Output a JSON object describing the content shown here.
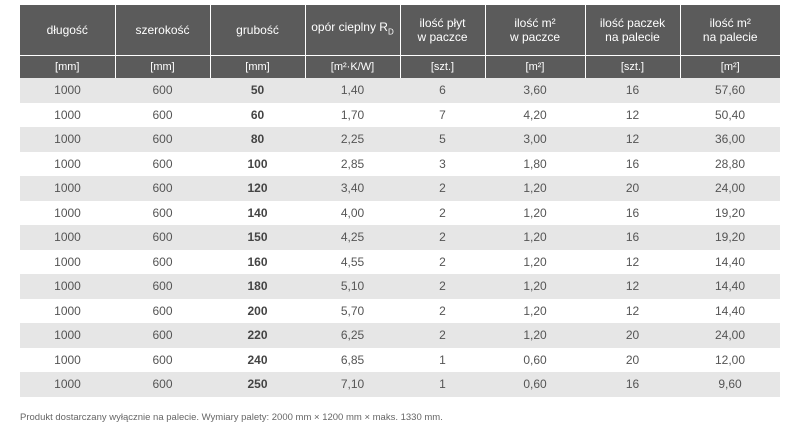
{
  "table": {
    "header": [
      {
        "lines": [
          "długość"
        ]
      },
      {
        "lines": [
          "szerokość"
        ]
      },
      {
        "lines": [
          "grubość"
        ]
      },
      {
        "lines": [
          "opór cieplny R"
        ],
        "sub": "D"
      },
      {
        "lines": [
          "ilość płyt",
          "w paczce"
        ]
      },
      {
        "lines": [
          "ilość m²",
          "w paczce"
        ]
      },
      {
        "lines": [
          "ilość paczek",
          "na palecie"
        ]
      },
      {
        "lines": [
          "ilość m²",
          "na palecie"
        ]
      }
    ],
    "units": [
      "[mm]",
      "[mm]",
      "[mm]",
      "[m²·K/W]",
      "[szt.]",
      "[m²]",
      "[szt.]",
      "[m²]"
    ],
    "rows": [
      [
        "1000",
        "600",
        "50",
        "1,40",
        "6",
        "3,60",
        "16",
        "57,60"
      ],
      [
        "1000",
        "600",
        "60",
        "1,70",
        "7",
        "4,20",
        "12",
        "50,40"
      ],
      [
        "1000",
        "600",
        "80",
        "2,25",
        "5",
        "3,00",
        "12",
        "36,00"
      ],
      [
        "1000",
        "600",
        "100",
        "2,85",
        "3",
        "1,80",
        "16",
        "28,80"
      ],
      [
        "1000",
        "600",
        "120",
        "3,40",
        "2",
        "1,20",
        "20",
        "24,00"
      ],
      [
        "1000",
        "600",
        "140",
        "4,00",
        "2",
        "1,20",
        "16",
        "19,20"
      ],
      [
        "1000",
        "600",
        "150",
        "4,25",
        "2",
        "1,20",
        "16",
        "19,20"
      ],
      [
        "1000",
        "600",
        "160",
        "4,55",
        "2",
        "1,20",
        "12",
        "14,40"
      ],
      [
        "1000",
        "600",
        "180",
        "5,10",
        "2",
        "1,20",
        "12",
        "14,40"
      ],
      [
        "1000",
        "600",
        "200",
        "5,70",
        "2",
        "1,20",
        "12",
        "14,40"
      ],
      [
        "1000",
        "600",
        "220",
        "6,25",
        "2",
        "1,20",
        "20",
        "24,00"
      ],
      [
        "1000",
        "600",
        "240",
        "6,85",
        "1",
        "0,60",
        "20",
        "12,00"
      ],
      [
        "1000",
        "600",
        "250",
        "7,10",
        "1",
        "0,60",
        "16",
        "9,60"
      ]
    ]
  },
  "footnote": "Produkt dostarczany wyłącznie na palecie. Wymiary palety: 2000 mm × 1200 mm × maks. 1330 mm."
}
